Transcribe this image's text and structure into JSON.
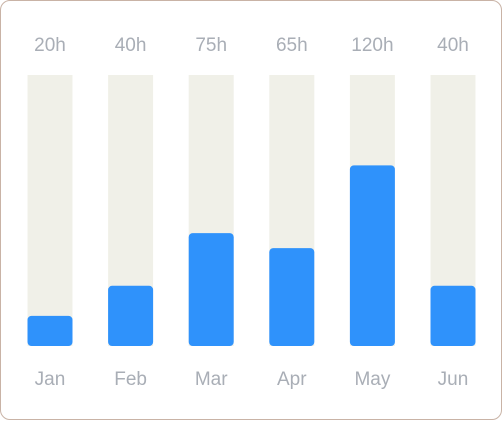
{
  "chart_data": {
    "type": "bar",
    "categories": [
      "Jan",
      "Feb",
      "Mar",
      "Apr",
      "May",
      "Jun"
    ],
    "values": [
      20,
      40,
      75,
      65,
      120,
      40
    ],
    "value_labels": [
      "20h",
      "40h",
      "75h",
      "65h",
      "120h",
      "40h"
    ],
    "unit": "h",
    "ylim": [
      0,
      180
    ],
    "title": "",
    "xlabel": "",
    "ylabel": "",
    "grid": false,
    "legend": "none"
  },
  "colors": {
    "bar": "#2f92fb",
    "track": "#f0f0e8",
    "label": "#a9aeb6",
    "border": "#c9b3a6"
  }
}
